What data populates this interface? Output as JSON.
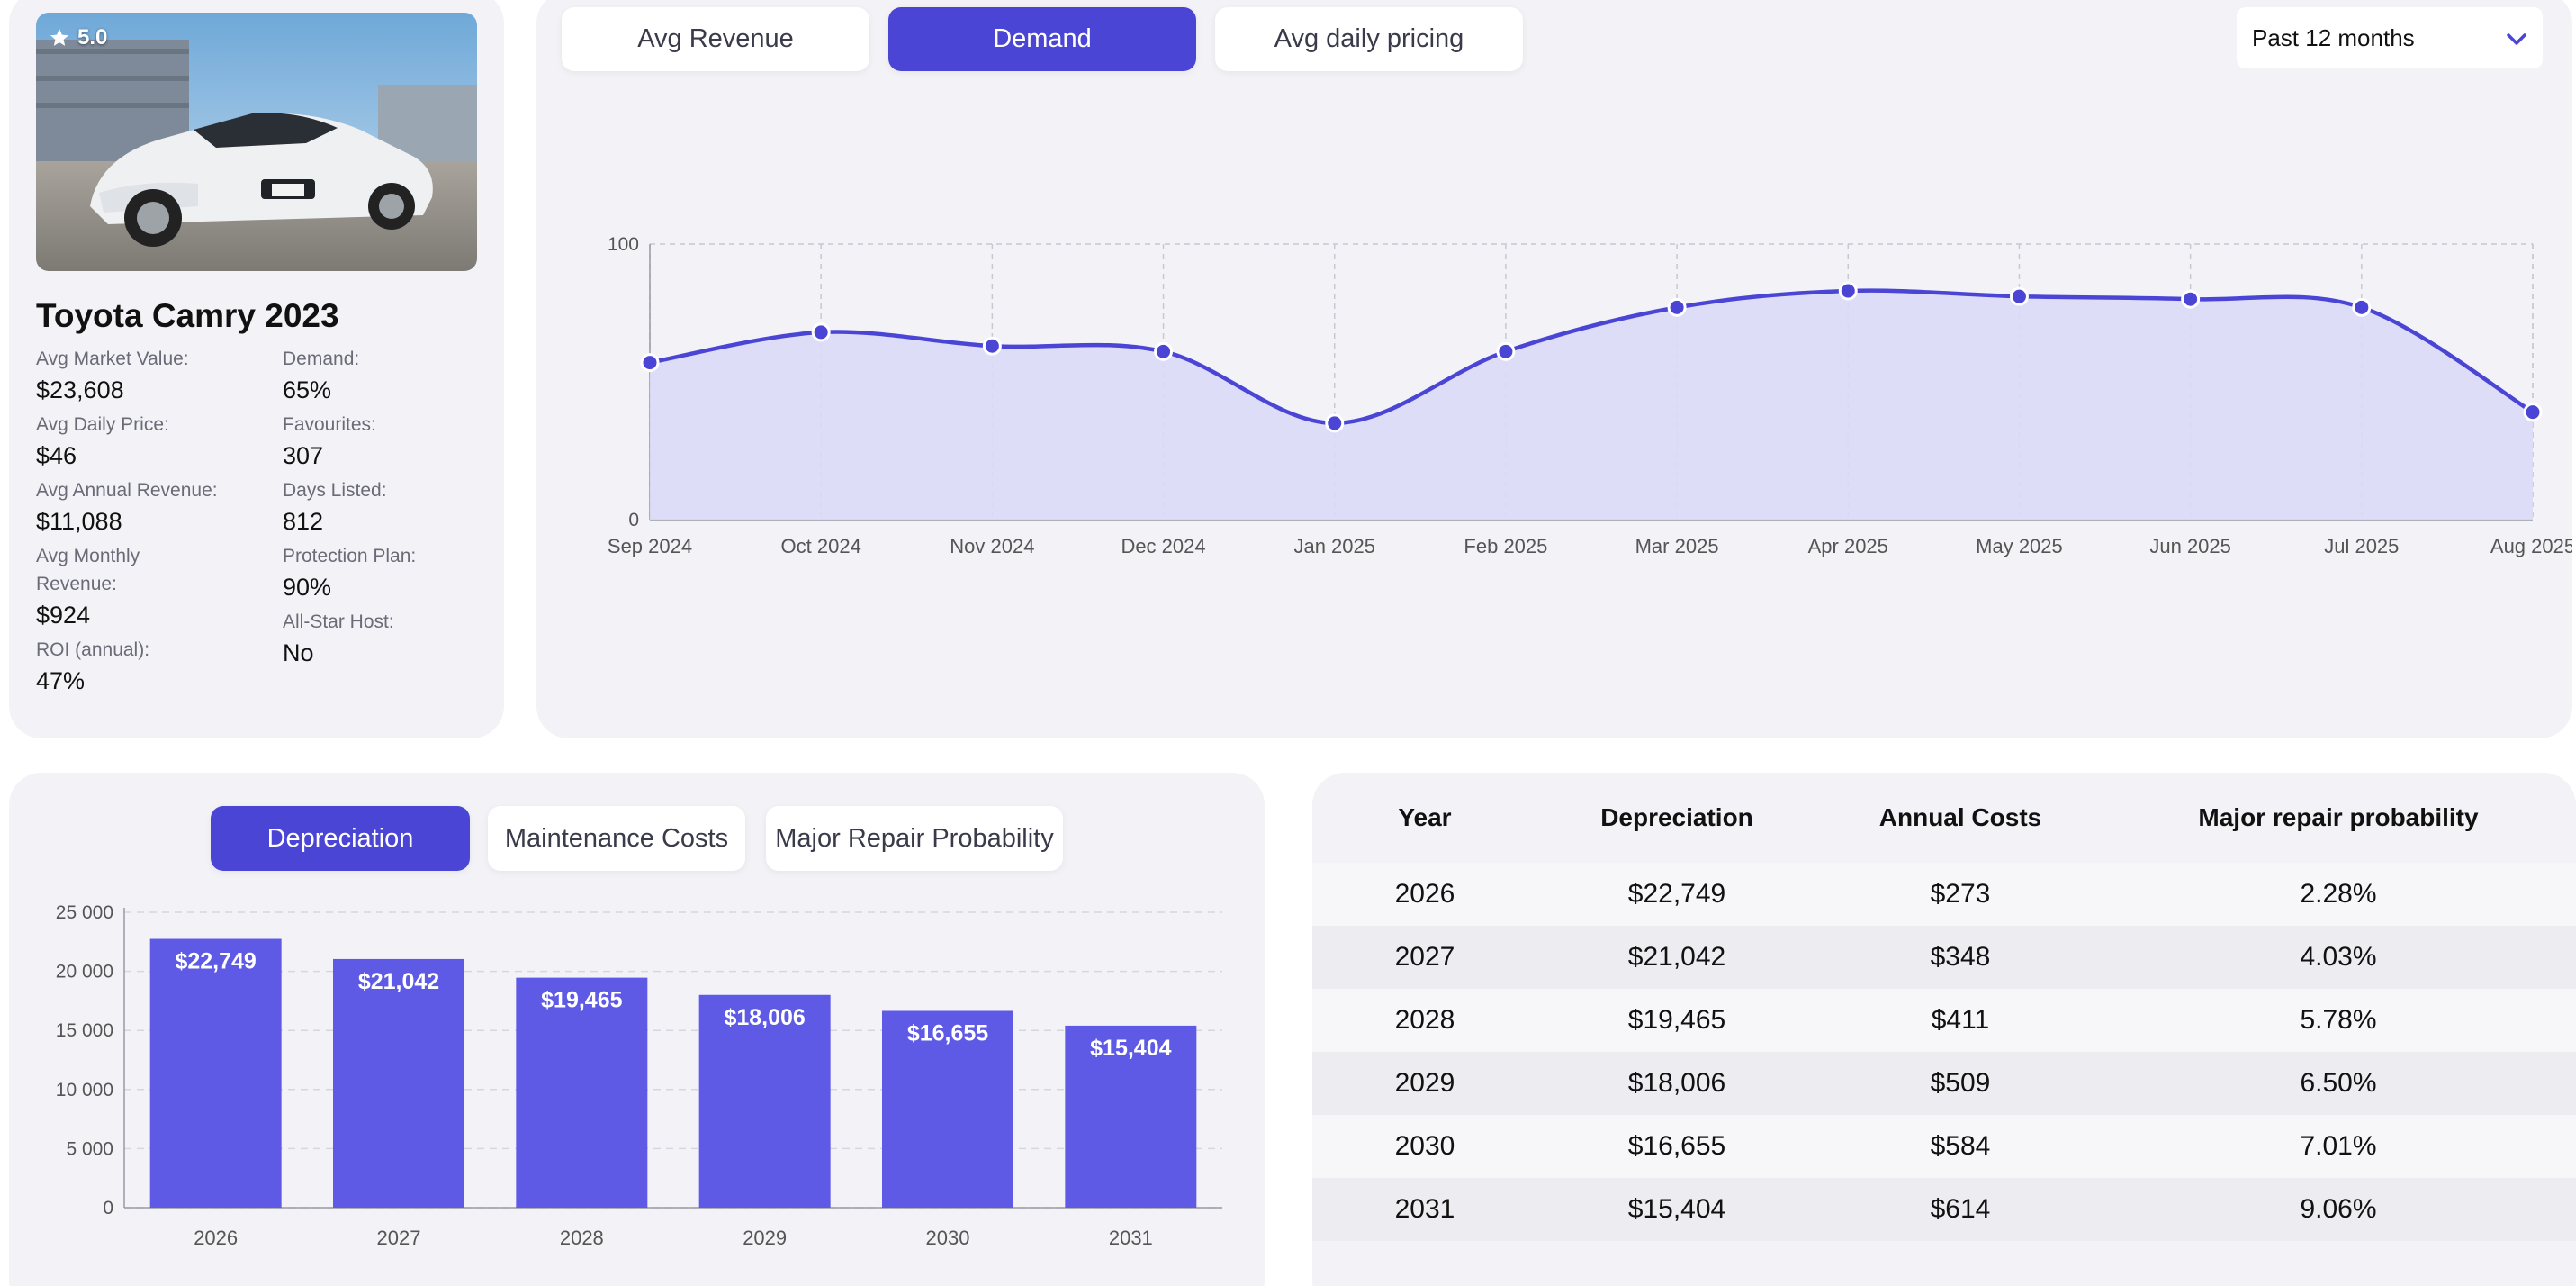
{
  "car": {
    "rating": "5.0",
    "title": "Toyota Camry 2023",
    "stats_left": [
      {
        "label": "Avg Market Value:",
        "value": "$23,608"
      },
      {
        "label": "Avg Daily Price:",
        "value": "$46"
      },
      {
        "label": "Avg Annual Revenue:",
        "value": "$11,088"
      },
      {
        "label": "Avg Monthly Revenue:",
        "value": "$924"
      },
      {
        "label": "ROI (annual):",
        "value": "47%"
      }
    ],
    "stats_right": [
      {
        "label": "Demand:",
        "value": "65%"
      },
      {
        "label": "Favourites:",
        "value": "307"
      },
      {
        "label": "Days Listed:",
        "value": "812"
      },
      {
        "label": "Protection Plan:",
        "value": "90%"
      },
      {
        "label": "All-Star Host:",
        "value": "No"
      }
    ]
  },
  "metric_tabs": [
    {
      "label": "Avg Revenue",
      "active": false
    },
    {
      "label": "Demand",
      "active": true
    },
    {
      "label": "Avg daily pricing",
      "active": false
    }
  ],
  "period_select": {
    "value": "Past 12 months"
  },
  "cost_tabs": [
    {
      "label": "Depreciation",
      "active": true
    },
    {
      "label": "Maintenance Costs",
      "active": false
    },
    {
      "label": "Major Repair Probability",
      "active": false
    }
  ],
  "chart_data": [
    {
      "type": "area",
      "x": [
        "Sep 2024",
        "Oct 2024",
        "Nov 2024",
        "Dec 2024",
        "Jan 2025",
        "Feb 2025",
        "Mar 2025",
        "Apr 2025",
        "May 2025",
        "Jun 2025",
        "Jul 2025",
        "Aug 2025"
      ],
      "series": [
        {
          "values": [
            57,
            68,
            63,
            61,
            35,
            61,
            77,
            83,
            81,
            80,
            77,
            39
          ]
        }
      ],
      "ylim": [
        0,
        100
      ],
      "yticks": [
        "0",
        "100"
      ],
      "grid": true,
      "color": "#4b45d6",
      "fill": "#dcdaf6"
    },
    {
      "type": "bar",
      "categories": [
        "2026",
        "2027",
        "2028",
        "2029",
        "2030",
        "2031"
      ],
      "values": [
        22749,
        21042,
        19465,
        18006,
        16655,
        15404
      ],
      "data_labels": [
        "$22,749",
        "$21,042",
        "$19,465",
        "$18,006",
        "$16,655",
        "$15,404"
      ],
      "yticks": [
        "0",
        "5 000",
        "10 000",
        "15 000",
        "20 000",
        "25 000"
      ],
      "ylim": [
        0,
        25000
      ],
      "grid": true,
      "color": "#5e5ae6"
    }
  ],
  "table": {
    "headers": [
      "Year",
      "Depreciation",
      "Annual Costs",
      "Major repair probability"
    ],
    "rows": [
      [
        "2026",
        "$22,749",
        "$273",
        "2.28%"
      ],
      [
        "2027",
        "$21,042",
        "$348",
        "4.03%"
      ],
      [
        "2028",
        "$19,465",
        "$411",
        "5.78%"
      ],
      [
        "2029",
        "$18,006",
        "$509",
        "6.50%"
      ],
      [
        "2030",
        "$16,655",
        "$584",
        "7.01%"
      ],
      [
        "2031",
        "$15,404",
        "$614",
        "9.06%"
      ]
    ]
  },
  "colors": {
    "accent": "#4b45d6",
    "bar": "#5e5ae6",
    "panel": "#f3f3f7"
  }
}
